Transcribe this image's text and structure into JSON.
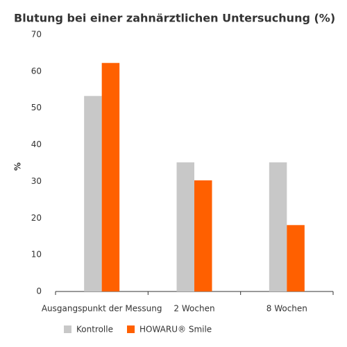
{
  "chart_data": {
    "type": "bar",
    "title": "Blutung bei einer zahnärztlichen Untersuchung (%)",
    "y_label": "%",
    "categories": [
      "Ausgangspunkt der Messung",
      "2 Wochen",
      "8 Wochen"
    ],
    "series": [
      {
        "name": "Kontrolle",
        "color": "#c8c8c8",
        "values": [
          53.3,
          35.2,
          35.2
        ]
      },
      {
        "name": "HOWARU® Smile",
        "color": "#ff6000",
        "values": [
          62.3,
          30.3,
          18.1
        ]
      }
    ],
    "ylim": [
      0,
      70
    ],
    "yticks": [
      0,
      10,
      20,
      30,
      40,
      50,
      60,
      70
    ],
    "grid": false
  }
}
